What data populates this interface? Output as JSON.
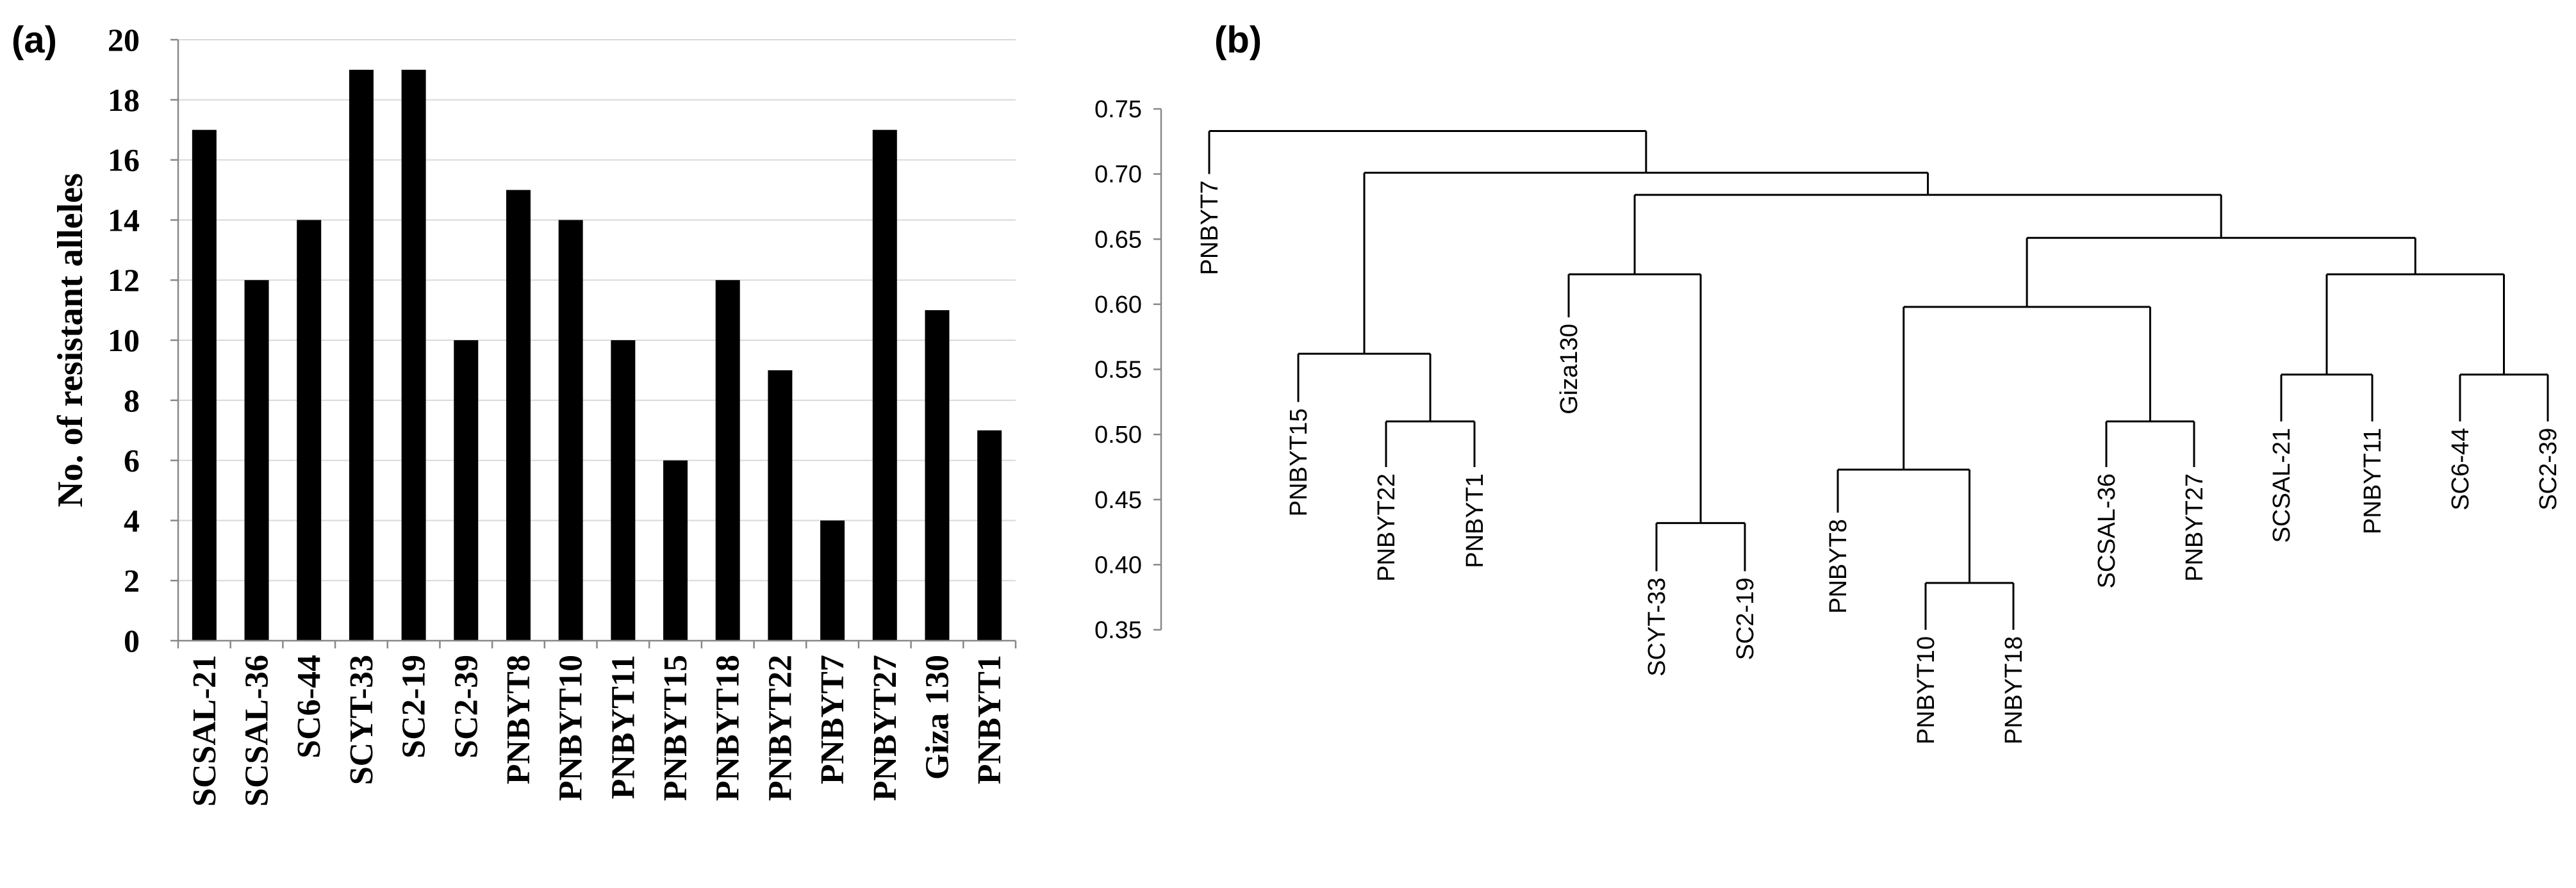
{
  "panels": {
    "a": "(a)",
    "b": "(b)"
  },
  "chart_data": [
    {
      "type": "bar",
      "title": "",
      "xlabel": "",
      "ylabel": "No. of resistant alleles",
      "ylim": [
        0,
        20
      ],
      "yticks": [
        0,
        2,
        4,
        6,
        8,
        10,
        12,
        14,
        16,
        18,
        20
      ],
      "grid": true,
      "categories": [
        "SCSAL-21",
        "SCSAL-36",
        "SC6-44",
        "SCYT-33",
        "SC2-19",
        "SC2-39",
        "PNBYT8",
        "PNBYT10",
        "PNBYT11",
        "PNBYT15",
        "PNBYT18",
        "PNBYT22",
        "PNBYT7",
        "PNBYT27",
        "Giza 130",
        "PNBYT1"
      ],
      "values": [
        17,
        12,
        14,
        19,
        19,
        10,
        15,
        14,
        10,
        6,
        12,
        9,
        4,
        17,
        11,
        7
      ],
      "color": "#000000"
    },
    {
      "type": "dendrogram",
      "ylim": [
        0.35,
        0.75
      ],
      "yticks": [
        "0.35",
        "0.40",
        "0.45",
        "0.50",
        "0.55",
        "0.60",
        "0.65",
        "0.70",
        "0.75"
      ],
      "leaves": [
        "PNBYT7",
        "PNBYT15",
        "PNBYT22",
        "PNBYT1",
        "Giza130",
        "SCYT-33",
        "SC2-19",
        "PNBYT8",
        "PNBYT10",
        "PNBYT18",
        "SCSAL-36",
        "PNBYT27",
        "SCSAL-21",
        "PNBYT11",
        "SC6-44",
        "SC2-39"
      ],
      "merges": [
        {
          "id": "n1",
          "left": "PNBYT22",
          "right": "PNBYT1",
          "height": 0.51
        },
        {
          "id": "n2",
          "left": "PNBYT15",
          "right": "n1",
          "height": 0.562
        },
        {
          "id": "n3",
          "left": "SCYT-33",
          "right": "SC2-19",
          "height": 0.432
        },
        {
          "id": "n4",
          "left": "Giza130",
          "right": "n3",
          "height": 0.623
        },
        {
          "id": "n5",
          "left": "PNBYT10",
          "right": "PNBYT18",
          "height": 0.386
        },
        {
          "id": "n6",
          "left": "PNBYT8",
          "right": "n5",
          "height": 0.473
        },
        {
          "id": "n7",
          "left": "SCSAL-36",
          "right": "PNBYT27",
          "height": 0.51
        },
        {
          "id": "n8",
          "left": "n6",
          "right": "n7",
          "height": 0.598
        },
        {
          "id": "n9",
          "left": "SCSAL-21",
          "right": "PNBYT11",
          "height": 0.546
        },
        {
          "id": "n10",
          "left": "SC6-44",
          "right": "SC2-39",
          "height": 0.546
        },
        {
          "id": "n11",
          "left": "n9",
          "right": "n10",
          "height": 0.623
        },
        {
          "id": "n12",
          "left": "n8",
          "right": "n11",
          "height": 0.651
        },
        {
          "id": "n13",
          "left": "n4",
          "right": "n12",
          "height": 0.684
        },
        {
          "id": "n14",
          "left": "n2",
          "right": "n13",
          "height": 0.701
        },
        {
          "id": "n15",
          "left": "PNBYT7",
          "right": "n14",
          "height": 0.733
        }
      ],
      "leaf_tips": {
        "PNBYT7": 0.7,
        "PNBYT15": 0.525,
        "PNBYT22": 0.475,
        "PNBYT1": 0.475,
        "Giza130": 0.59,
        "SCYT-33": 0.395,
        "SC2-19": 0.395,
        "PNBYT8": 0.44,
        "PNBYT10": 0.35,
        "PNBYT18": 0.35,
        "SCSAL-36": 0.475,
        "PNBYT27": 0.475,
        "SCSAL-21": 0.51,
        "PNBYT11": 0.51,
        "SC6-44": 0.51,
        "SC2-39": 0.51
      }
    }
  ]
}
